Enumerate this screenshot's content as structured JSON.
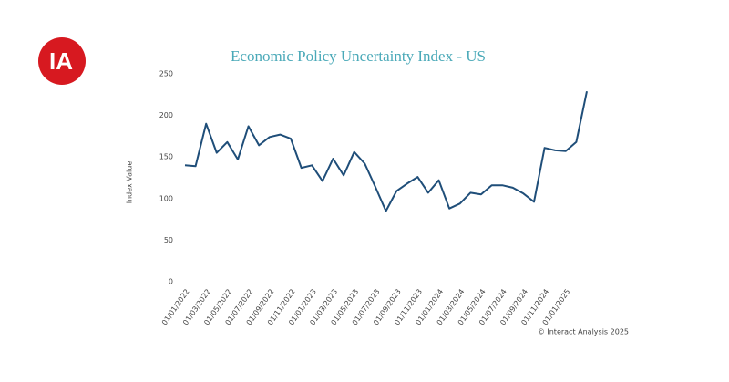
{
  "logo": "IA",
  "chart_data": {
    "type": "line",
    "title": "Economic Policy Uncertainty Index - US",
    "y_label": "Index Value",
    "categories": [
      "01/01/2022",
      null,
      "01/03/2022",
      null,
      "01/05/2022",
      null,
      "01/07/2022",
      null,
      "01/09/2022",
      null,
      "01/11/2022",
      null,
      "01/01/2023",
      null,
      "01/03/2023",
      null,
      "01/05/2023",
      null,
      "01/07/2023",
      null,
      "01/09/2023",
      null,
      "01/11/2023",
      null,
      "01/01/2024",
      null,
      "01/03/2024",
      null,
      "01/05/2024",
      null,
      "01/07/2024",
      null,
      "01/09/2024",
      null,
      "01/11/2024",
      null,
      "01/01/2025",
      null,
      null
    ],
    "series": [
      {
        "name": "Index Value",
        "color": "#1f4e79",
        "values": [
          140,
          139,
          190,
          155,
          168,
          147,
          187,
          164,
          174,
          177,
          172,
          137,
          140,
          121,
          148,
          128,
          156,
          142,
          114,
          85,
          109,
          118,
          126,
          107,
          122,
          88,
          94,
          107,
          105,
          116,
          116,
          113,
          106,
          96,
          161,
          158,
          157,
          168,
          229
        ]
      }
    ],
    "ylim": [
      0,
      250
    ],
    "yticks": [
      0,
      50,
      100,
      150,
      200,
      250
    ],
    "grid": false,
    "source": "© Interact Analysis 2025"
  }
}
